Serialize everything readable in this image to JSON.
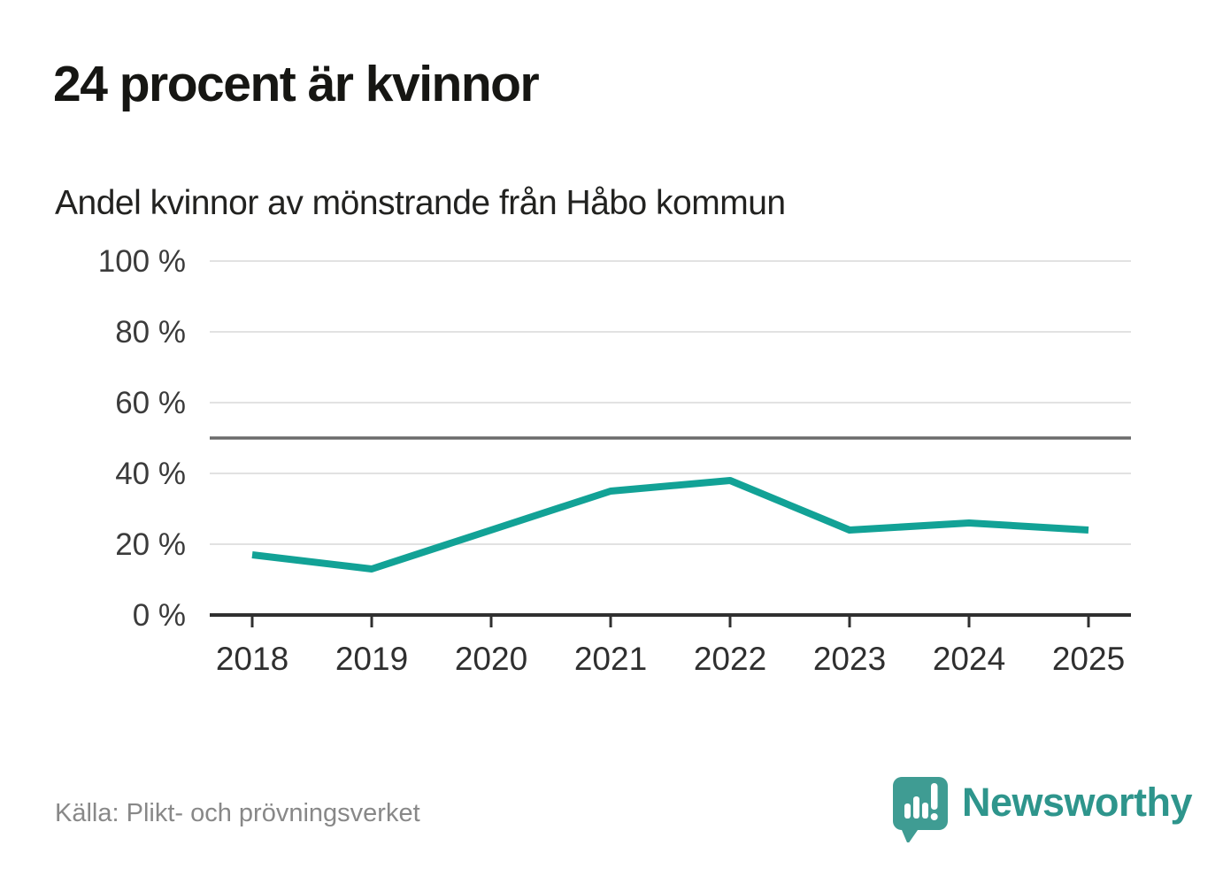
{
  "header": {
    "title": "24 procent är kvinnor",
    "subtitle": "Andel kvinnor av mönstrande från Håbo kommun"
  },
  "chart_data": {
    "type": "line",
    "title": "Andel kvinnor av mönstrande från Håbo kommun",
    "x": [
      2018,
      2019,
      2020,
      2021,
      2022,
      2023,
      2024,
      2025
    ],
    "series": [
      {
        "name": "Andel kvinnor (%)",
        "values": [
          17,
          13,
          24,
          35,
          38,
          24,
          26,
          24
        ]
      }
    ],
    "xlabel": "",
    "ylabel": "",
    "ylim": [
      0,
      100
    ],
    "y_ticks": [
      {
        "value": 0,
        "label": "0 %"
      },
      {
        "value": 20,
        "label": "20 %"
      },
      {
        "value": 40,
        "label": "40 %"
      },
      {
        "value": 60,
        "label": "60 %"
      },
      {
        "value": 80,
        "label": "80 %"
      },
      {
        "value": 100,
        "label": "100 %"
      }
    ],
    "reference_line": {
      "value": 50
    },
    "grid": true,
    "legend_position": "none",
    "colors": {
      "line": "#12a296",
      "grid": "#e2e2e2",
      "reference": "#6b6b6b",
      "axis": "#303030",
      "tick_label": "#3b3b3b"
    }
  },
  "footer": {
    "source": "Källa: Plikt- och prövningsverket",
    "brand": "Newsworthy",
    "brand_color": "#2e958c",
    "logo_bubble_color": "#3f9c93"
  }
}
